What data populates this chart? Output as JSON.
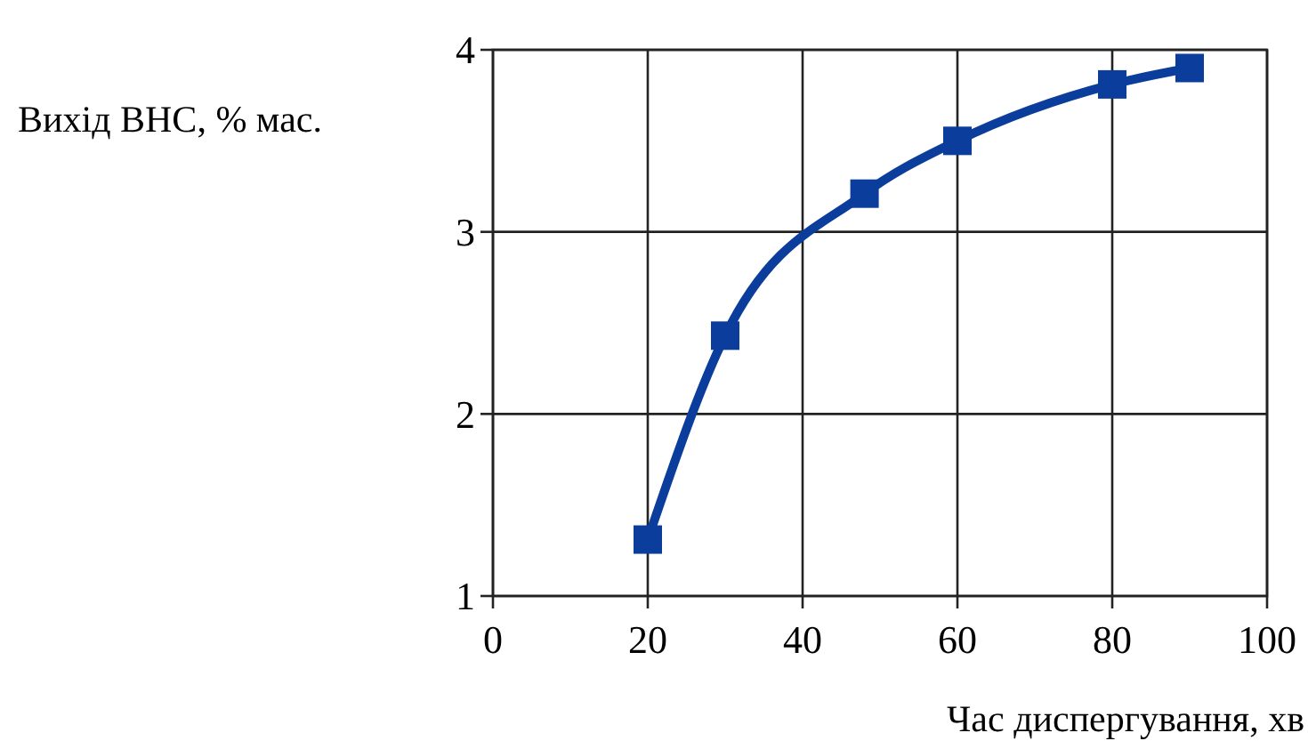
{
  "chart_data": {
    "type": "line",
    "ylabel": "Вихід ВНС, % мас.",
    "xlabel": "Час диспергування, хв",
    "x": [
      20,
      30,
      48,
      60,
      80,
      90
    ],
    "series": [
      {
        "color": "#0b3d9c",
        "values": [
          1.31,
          2.43,
          3.21,
          3.5,
          3.81,
          3.9
        ]
      }
    ],
    "xlim": [
      0,
      100
    ],
    "xticks": [
      0,
      20,
      40,
      60,
      80,
      100
    ],
    "ylim": [
      1,
      4
    ],
    "yticks": [
      1,
      2,
      3,
      4
    ],
    "grid": true,
    "marker": "square",
    "line_style": "solid"
  }
}
